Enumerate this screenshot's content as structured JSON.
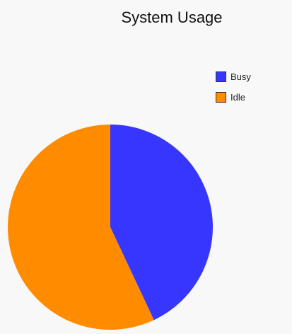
{
  "chart_data": {
    "type": "pie",
    "title": "System Usage",
    "slices": [
      {
        "label": "Busy",
        "value": 43,
        "color": "#3636ff"
      },
      {
        "label": "Idle",
        "value": 57,
        "color": "#ff8c00"
      }
    ],
    "legend_position": "top-right"
  }
}
